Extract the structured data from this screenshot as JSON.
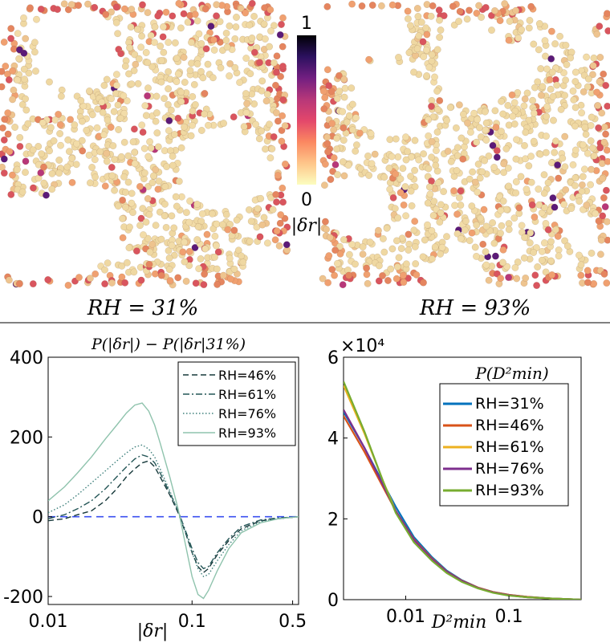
{
  "top": {
    "panels": [
      {
        "caption": "RH = 31%"
      },
      {
        "caption": "RH = 93%"
      }
    ],
    "colorbar": {
      "max_label": "1",
      "min_label": "0",
      "label": "|δr|",
      "colors": [
        "#fcfdbf",
        "#fec68a",
        "#fb8861",
        "#e3476b",
        "#b73779",
        "#721f81",
        "#2c115f",
        "#000004"
      ]
    },
    "particle_color_hint": {
      "base": "#efd8a2",
      "accent": "#e5855f"
    }
  },
  "chart_data": [
    {
      "type": "line",
      "title": "P(|δr|) − P(|δr|31%)",
      "xlabel": "|δr|",
      "ylabel": "",
      "xscale": "log",
      "xlim": [
        0.01,
        0.55
      ],
      "ylim": [
        -220,
        400
      ],
      "xticks": [
        {
          "value": 0.01,
          "label": "0.01"
        },
        {
          "value": 0.1,
          "label": "0.1"
        },
        {
          "value": 0.5,
          "label": "0.5"
        }
      ],
      "yticks": [
        {
          "value": 400,
          "label": "400"
        },
        {
          "value": 200,
          "label": "200"
        },
        {
          "value": 0,
          "label": "0"
        },
        {
          "value": -200,
          "label": "-200"
        }
      ],
      "reference_line": {
        "y": 0,
        "color": "#3a4ff0",
        "style": "dashed"
      },
      "legend": {
        "position": "top-right"
      },
      "x": [
        0.01,
        0.013,
        0.016,
        0.02,
        0.025,
        0.03,
        0.035,
        0.04,
        0.045,
        0.05,
        0.055,
        0.06,
        0.07,
        0.08,
        0.09,
        0.1,
        0.11,
        0.12,
        0.13,
        0.15,
        0.18,
        0.22,
        0.3,
        0.4,
        0.55
      ],
      "series": [
        {
          "name": "RH=46%",
          "color": "#16383a",
          "style": "dashed",
          "values": [
            -10,
            -5,
            5,
            15,
            40,
            70,
            100,
            120,
            135,
            140,
            125,
            100,
            55,
            10,
            -40,
            -90,
            -125,
            -140,
            -130,
            -95,
            -60,
            -30,
            -10,
            -5,
            0
          ]
        },
        {
          "name": "RH=61%",
          "color": "#245657",
          "style": "dashdot",
          "values": [
            -5,
            5,
            20,
            40,
            70,
            100,
            125,
            145,
            155,
            150,
            135,
            110,
            60,
            15,
            -35,
            -80,
            -115,
            -130,
            -125,
            -90,
            -55,
            -25,
            -8,
            -3,
            0
          ]
        },
        {
          "name": "RH=76%",
          "color": "#3e807c",
          "style": "dotted",
          "values": [
            10,
            30,
            55,
            85,
            115,
            140,
            160,
            175,
            180,
            170,
            150,
            120,
            65,
            15,
            -40,
            -90,
            -130,
            -150,
            -145,
            -110,
            -70,
            -35,
            -12,
            -4,
            0
          ]
        },
        {
          "name": "RH=93%",
          "color": "#8fc3ad",
          "style": "solid",
          "values": [
            40,
            75,
            110,
            150,
            195,
            230,
            260,
            280,
            285,
            265,
            230,
            185,
            100,
            20,
            -70,
            -150,
            -195,
            -205,
            -185,
            -135,
            -80,
            -40,
            -15,
            -5,
            0
          ]
        }
      ]
    },
    {
      "type": "line",
      "title": "P(D²min)",
      "xlabel": "D²min",
      "ylabel": "",
      "xscale": "log",
      "xlim": [
        0.0025,
        0.5
      ],
      "ylim": [
        0,
        6
      ],
      "y_multiplier_label": "×10⁴",
      "xticks": [
        {
          "value": 0.01,
          "label": "0.01"
        },
        {
          "value": 0.1,
          "label": "0.1"
        }
      ],
      "yticks": [
        {
          "value": 6,
          "label": "6"
        },
        {
          "value": 4,
          "label": "4"
        },
        {
          "value": 2,
          "label": "2"
        },
        {
          "value": 0,
          "label": "0"
        }
      ],
      "legend": {
        "position": "top-right"
      },
      "x": [
        0.0025,
        0.004,
        0.006,
        0.008,
        0.012,
        0.018,
        0.025,
        0.035,
        0.05,
        0.07,
        0.1,
        0.15,
        0.25,
        0.5
      ],
      "series": [
        {
          "name": "RH=31%",
          "color": "#0072bd",
          "values": [
            4.65,
            3.75,
            2.9,
            2.3,
            1.55,
            1.05,
            0.72,
            0.48,
            0.3,
            0.19,
            0.12,
            0.07,
            0.03,
            0.0
          ]
        },
        {
          "name": "RH=46%",
          "color": "#d95319",
          "values": [
            4.55,
            3.65,
            2.8,
            2.2,
            1.5,
            1.02,
            0.7,
            0.47,
            0.3,
            0.19,
            0.12,
            0.07,
            0.03,
            0.0
          ]
        },
        {
          "name": "RH=61%",
          "color": "#edb120",
          "values": [
            5.3,
            4.1,
            2.95,
            2.2,
            1.45,
            0.98,
            0.68,
            0.45,
            0.29,
            0.18,
            0.11,
            0.06,
            0.03,
            0.0
          ]
        },
        {
          "name": "RH=76%",
          "color": "#7e2f8e",
          "values": [
            4.7,
            3.75,
            2.85,
            2.2,
            1.48,
            1.0,
            0.69,
            0.46,
            0.29,
            0.18,
            0.11,
            0.06,
            0.03,
            0.0
          ]
        },
        {
          "name": "RH=93%",
          "color": "#77ac30",
          "values": [
            5.4,
            4.15,
            2.95,
            2.15,
            1.42,
            0.96,
            0.66,
            0.44,
            0.28,
            0.17,
            0.1,
            0.06,
            0.03,
            0.0
          ]
        }
      ]
    }
  ]
}
